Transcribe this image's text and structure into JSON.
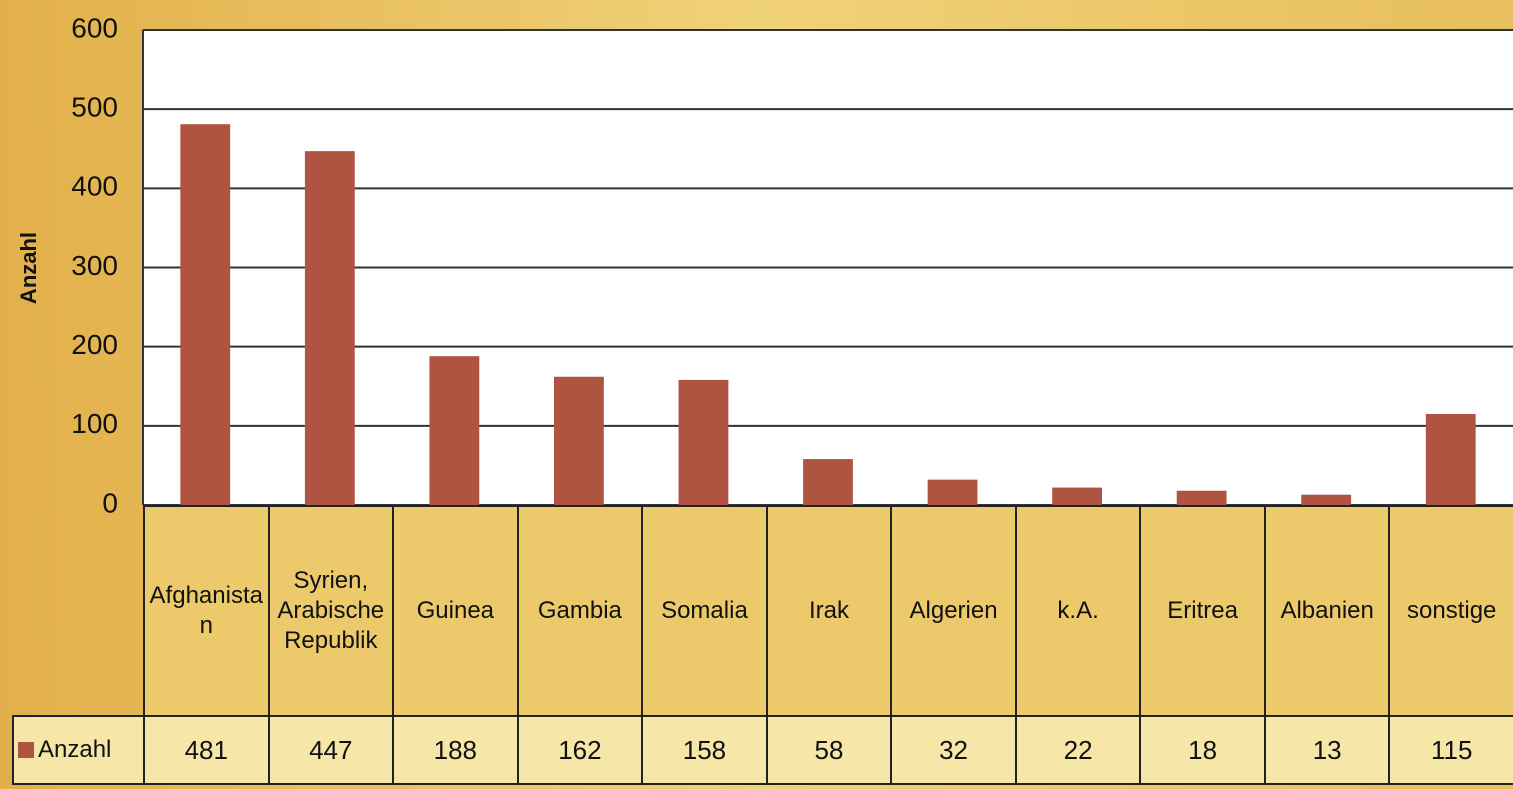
{
  "chart_data": {
    "type": "bar",
    "y_label": "Anzahl",
    "categories": [
      "Afghanistan",
      "Syrien, Arabische Republik",
      "Guinea",
      "Gambia",
      "Somalia",
      "Irak",
      "Algerien",
      "k.A.",
      "Eritrea",
      "Albanien",
      "sonstige"
    ],
    "series": [
      {
        "name": "Anzahl",
        "color": "#ae5440",
        "values": [
          481,
          447,
          188,
          162,
          158,
          58,
          32,
          22,
          18,
          13,
          115
        ]
      }
    ],
    "ylim": [
      0,
      600
    ],
    "yticks": [
      0,
      100,
      200,
      300,
      400,
      500,
      600
    ],
    "grid": true,
    "data_table": true
  }
}
